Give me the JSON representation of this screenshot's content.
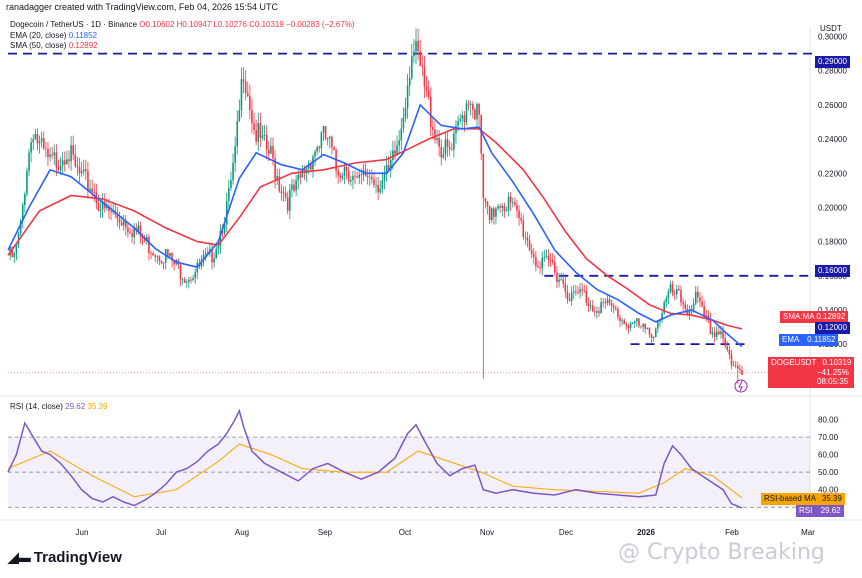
{
  "header": {
    "created_by": "ranadagger created with TradingView.com, Feb 04, 2026 15:54 UTC",
    "symbol_line": "Dogecoin / TetherUS · 1D · Binance",
    "ohlc": "O0.10602 H0.10947 L0.10276 C0.10319 −0.00283 (−2.67%)",
    "ema_label": "EMA (20, close)",
    "ema_value": "0.11852",
    "sma_label": "SMA (50, close)",
    "sma_value": "0.12892"
  },
  "rsi_legend": {
    "label": "RSI (14, close)",
    "rsi_value": "29.62",
    "ma_value": "35.39"
  },
  "branding": {
    "logo_text": "TradingView",
    "watermark": "@ Crypto Breaking"
  },
  "colors": {
    "up": "#089981",
    "down": "#f23645",
    "ema": "#2962ff",
    "sma": "#f23645",
    "rsi": "#7e57c2",
    "rsi_ma": "#f7a600",
    "level_line": "#1a1aa8"
  },
  "price_tags": {
    "sma_label": "SMA:MA",
    "sma_value": "0.12892",
    "level_120": "0.12000",
    "ema_label": "EMA",
    "ema_value": "0.11852",
    "symbol": "DOGEUSDT",
    "last_price": "0.10319",
    "change_pct": "−41.25%",
    "countdown": "08:05:35"
  },
  "rsi_tags": {
    "ma_label": "RSI-based MA",
    "ma_value": "35.39",
    "rsi_label": "RSI",
    "rsi_value": "29.62"
  },
  "chart_data": {
    "type": "candlestick",
    "currency": "USDT",
    "price_axis_ticks": [
      "0.30000",
      "0.28000",
      "0.26000",
      "0.24000",
      "0.22000",
      "0.20000",
      "0.18000",
      "0.16000",
      "0.14000",
      "0.12000",
      "0.10000"
    ],
    "ylim": [
      0.092,
      0.305
    ],
    "x_labels": [
      "Jun",
      "Jul",
      "Aug",
      "Sep",
      "Oct",
      "Nov",
      "Dec",
      "2026",
      "Feb",
      "Mar"
    ],
    "horizontal_levels": [
      {
        "value": 0.29,
        "label": "0.29000"
      },
      {
        "value": 0.16,
        "label": "0.16000"
      },
      {
        "value": 0.12,
        "label": "0.12000"
      }
    ],
    "price_path": [
      [
        0,
        0.172
      ],
      [
        3,
        0.17
      ],
      [
        6,
        0.188
      ],
      [
        9,
        0.225
      ],
      [
        12,
        0.247
      ],
      [
        15,
        0.235
      ],
      [
        20,
        0.225
      ],
      [
        25,
        0.23
      ],
      [
        28,
        0.235
      ],
      [
        32,
        0.222
      ],
      [
        36,
        0.215
      ],
      [
        40,
        0.212
      ],
      [
        45,
        0.198
      ],
      [
        50,
        0.196
      ],
      [
        55,
        0.193
      ],
      [
        60,
        0.187
      ],
      [
        65,
        0.18
      ],
      [
        70,
        0.175
      ],
      [
        75,
        0.172
      ],
      [
        80,
        0.165
      ],
      [
        85,
        0.16
      ],
      [
        90,
        0.163
      ],
      [
        93,
        0.168
      ],
      [
        96,
        0.17
      ],
      [
        100,
        0.182
      ],
      [
        105,
        0.205
      ],
      [
        108,
        0.23
      ],
      [
        110,
        0.255
      ],
      [
        112,
        0.283
      ],
      [
        114,
        0.27
      ],
      [
        117,
        0.246
      ],
      [
        121,
        0.236
      ],
      [
        125,
        0.23
      ],
      [
        129,
        0.215
      ],
      [
        133,
        0.205
      ],
      [
        137,
        0.21
      ],
      [
        141,
        0.222
      ],
      [
        145,
        0.232
      ],
      [
        149,
        0.24
      ],
      [
        152,
        0.24
      ],
      [
        156,
        0.222
      ],
      [
        161,
        0.225
      ],
      [
        166,
        0.212
      ],
      [
        171,
        0.22
      ],
      [
        176,
        0.215
      ],
      [
        181,
        0.218
      ],
      [
        186,
        0.24
      ],
      [
        189,
        0.266
      ],
      [
        192,
        0.293
      ],
      [
        195,
        0.285
      ],
      [
        199,
        0.264
      ],
      [
        203,
        0.245
      ],
      [
        207,
        0.232
      ],
      [
        211,
        0.232
      ],
      [
        215,
        0.25
      ],
      [
        219,
        0.266
      ],
      [
        221,
        0.262
      ],
      [
        224,
        0.25
      ],
      [
        226,
        0.205
      ],
      [
        229,
        0.19
      ],
      [
        233,
        0.205
      ],
      [
        238,
        0.202
      ],
      [
        243,
        0.193
      ],
      [
        248,
        0.178
      ],
      [
        253,
        0.164
      ],
      [
        258,
        0.168
      ],
      [
        263,
        0.158
      ],
      [
        268,
        0.147
      ],
      [
        273,
        0.15
      ],
      [
        278,
        0.142
      ],
      [
        283,
        0.143
      ],
      [
        288,
        0.14
      ],
      [
        293,
        0.133
      ],
      [
        298,
        0.132
      ],
      [
        303,
        0.127
      ],
      [
        307,
        0.127
      ],
      [
        311,
        0.14
      ],
      [
        315,
        0.15
      ],
      [
        319,
        0.147
      ],
      [
        323,
        0.14
      ],
      [
        327,
        0.147
      ],
      [
        331,
        0.135
      ],
      [
        335,
        0.127
      ],
      [
        339,
        0.128
      ],
      [
        341,
        0.12
      ],
      [
        344,
        0.106
      ],
      [
        347,
        0.105
      ],
      [
        349,
        0.10319
      ]
    ],
    "ema20_path": [
      [
        0,
        0.175
      ],
      [
        10,
        0.2
      ],
      [
        20,
        0.222
      ],
      [
        30,
        0.218
      ],
      [
        40,
        0.208
      ],
      [
        50,
        0.198
      ],
      [
        60,
        0.188
      ],
      [
        70,
        0.176
      ],
      [
        80,
        0.168
      ],
      [
        90,
        0.165
      ],
      [
        100,
        0.18
      ],
      [
        110,
        0.217
      ],
      [
        118,
        0.232
      ],
      [
        130,
        0.225
      ],
      [
        140,
        0.222
      ],
      [
        150,
        0.231
      ],
      [
        160,
        0.226
      ],
      [
        170,
        0.22
      ],
      [
        180,
        0.22
      ],
      [
        188,
        0.232
      ],
      [
        196,
        0.26
      ],
      [
        206,
        0.248
      ],
      [
        216,
        0.246
      ],
      [
        224,
        0.247
      ],
      [
        230,
        0.232
      ],
      [
        240,
        0.215
      ],
      [
        250,
        0.196
      ],
      [
        260,
        0.175
      ],
      [
        270,
        0.162
      ],
      [
        280,
        0.152
      ],
      [
        290,
        0.146
      ],
      [
        300,
        0.138
      ],
      [
        308,
        0.133
      ],
      [
        315,
        0.137
      ],
      [
        325,
        0.14
      ],
      [
        335,
        0.134
      ],
      [
        342,
        0.126
      ],
      [
        349,
        0.11852
      ]
    ],
    "sma50_path": [
      [
        0,
        0.172
      ],
      [
        15,
        0.198
      ],
      [
        30,
        0.207
      ],
      [
        45,
        0.205
      ],
      [
        60,
        0.198
      ],
      [
        75,
        0.188
      ],
      [
        90,
        0.18
      ],
      [
        100,
        0.178
      ],
      [
        110,
        0.194
      ],
      [
        120,
        0.212
      ],
      [
        135,
        0.22
      ],
      [
        150,
        0.222
      ],
      [
        165,
        0.226
      ],
      [
        180,
        0.228
      ],
      [
        190,
        0.234
      ],
      [
        200,
        0.24
      ],
      [
        212,
        0.246
      ],
      [
        224,
        0.246
      ],
      [
        232,
        0.238
      ],
      [
        245,
        0.222
      ],
      [
        255,
        0.205
      ],
      [
        265,
        0.186
      ],
      [
        275,
        0.17
      ],
      [
        285,
        0.16
      ],
      [
        295,
        0.152
      ],
      [
        305,
        0.143
      ],
      [
        315,
        0.138
      ],
      [
        325,
        0.137
      ],
      [
        335,
        0.134
      ],
      [
        342,
        0.131
      ],
      [
        349,
        0.12892
      ]
    ],
    "rsi_axis_ticks": [
      "80.00",
      "70.00",
      "60.00",
      "50.00",
      "40.00",
      "30.00"
    ],
    "rsi_ylim": [
      25,
      90
    ],
    "rsi_bands": [
      70,
      50,
      30
    ],
    "rsi_path": [
      [
        0,
        50
      ],
      [
        4,
        60
      ],
      [
        8,
        78
      ],
      [
        12,
        70
      ],
      [
        16,
        62
      ],
      [
        20,
        60
      ],
      [
        25,
        55
      ],
      [
        30,
        48
      ],
      [
        35,
        40
      ],
      [
        40,
        35
      ],
      [
        45,
        33
      ],
      [
        50,
        36
      ],
      [
        55,
        33
      ],
      [
        60,
        31
      ],
      [
        65,
        34
      ],
      [
        70,
        38
      ],
      [
        75,
        43
      ],
      [
        80,
        50
      ],
      [
        85,
        52
      ],
      [
        90,
        56
      ],
      [
        95,
        62
      ],
      [
        100,
        66
      ],
      [
        104,
        72
      ],
      [
        108,
        80
      ],
      [
        110,
        85
      ],
      [
        112,
        76
      ],
      [
        116,
        62
      ],
      [
        122,
        55
      ],
      [
        130,
        50
      ],
      [
        138,
        45
      ],
      [
        145,
        52
      ],
      [
        152,
        55
      ],
      [
        160,
        50
      ],
      [
        168,
        46
      ],
      [
        176,
        50
      ],
      [
        184,
        58
      ],
      [
        190,
        72
      ],
      [
        194,
        77
      ],
      [
        198,
        68
      ],
      [
        204,
        55
      ],
      [
        210,
        48
      ],
      [
        216,
        52
      ],
      [
        222,
        54
      ],
      [
        226,
        40
      ],
      [
        232,
        38
      ],
      [
        240,
        40
      ],
      [
        250,
        38
      ],
      [
        260,
        37
      ],
      [
        270,
        40
      ],
      [
        280,
        38
      ],
      [
        290,
        37
      ],
      [
        300,
        36
      ],
      [
        308,
        37
      ],
      [
        312,
        55
      ],
      [
        316,
        65
      ],
      [
        320,
        60
      ],
      [
        325,
        52
      ],
      [
        330,
        48
      ],
      [
        335,
        44
      ],
      [
        340,
        40
      ],
      [
        344,
        32
      ],
      [
        349,
        29.62
      ]
    ],
    "rsi_ma_path": [
      [
        0,
        52
      ],
      [
        20,
        62
      ],
      [
        40,
        48
      ],
      [
        60,
        36
      ],
      [
        80,
        40
      ],
      [
        100,
        56
      ],
      [
        110,
        66
      ],
      [
        125,
        60
      ],
      [
        140,
        52
      ],
      [
        160,
        50
      ],
      [
        180,
        50
      ],
      [
        195,
        62
      ],
      [
        210,
        56
      ],
      [
        225,
        50
      ],
      [
        240,
        42
      ],
      [
        260,
        40
      ],
      [
        280,
        39
      ],
      [
        300,
        38
      ],
      [
        312,
        44
      ],
      [
        322,
        52
      ],
      [
        335,
        48
      ],
      [
        349,
        35.39
      ]
    ]
  }
}
